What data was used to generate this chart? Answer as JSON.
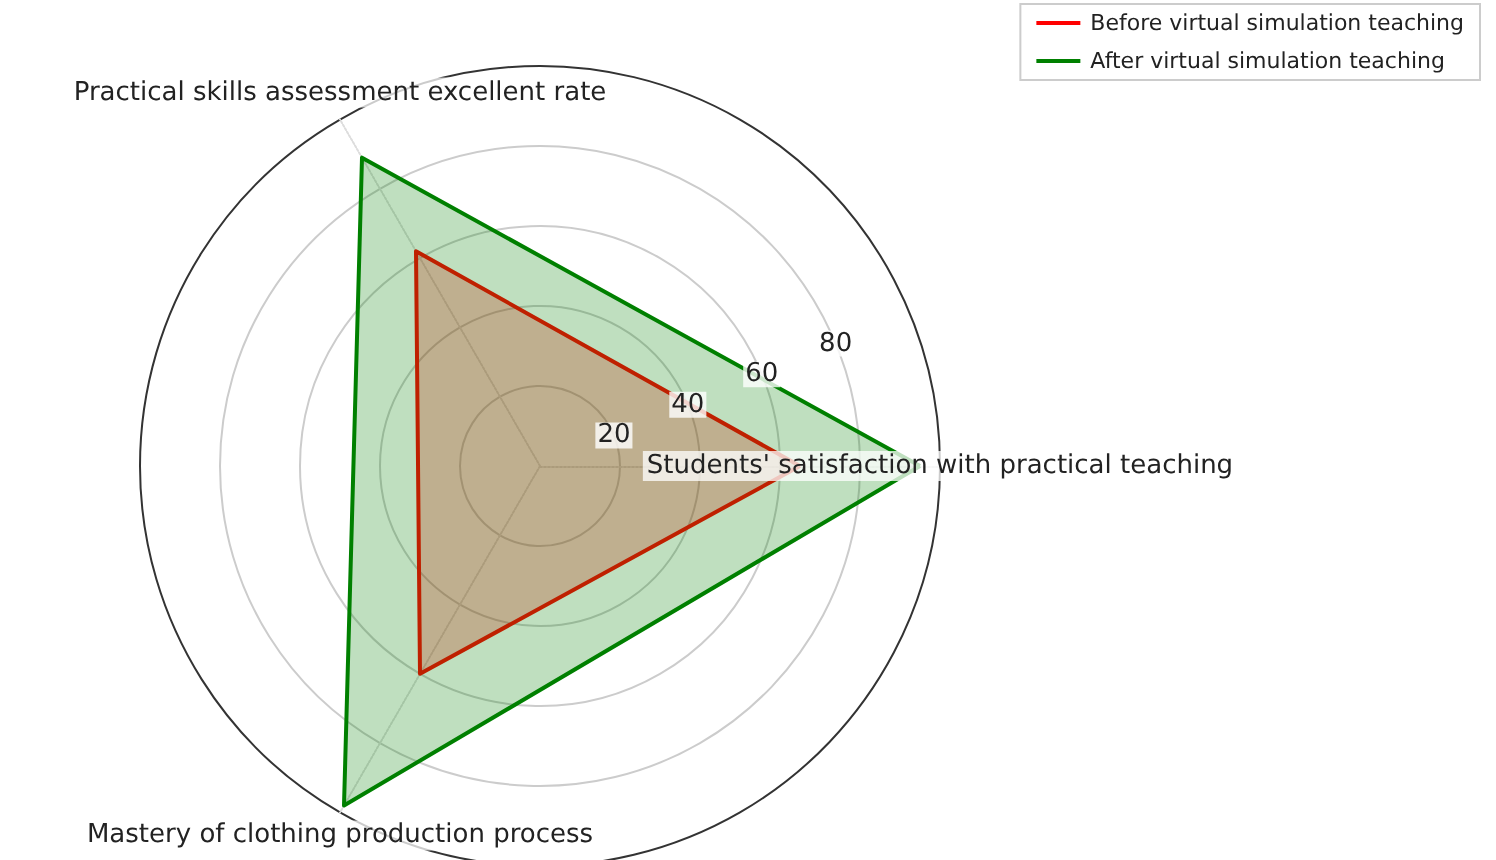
{
  "chart_data": {
    "type": "radar",
    "categories": [
      "Students' satisfaction with practical teaching",
      "Mastery of clothing production process",
      "Practical skills assessment excellent rate"
    ],
    "series": [
      {
        "name": "Before virtual simulation teaching",
        "color": "#ff0000",
        "values": [
          65,
          60,
          62
        ]
      },
      {
        "name": "After virtual simulation teaching",
        "color": "#008000",
        "values": [
          95,
          98,
          89
        ]
      }
    ],
    "ylim": [
      0,
      100
    ],
    "yticks": [
      20,
      40,
      60,
      80
    ],
    "grid": true,
    "legend": "top right"
  }
}
